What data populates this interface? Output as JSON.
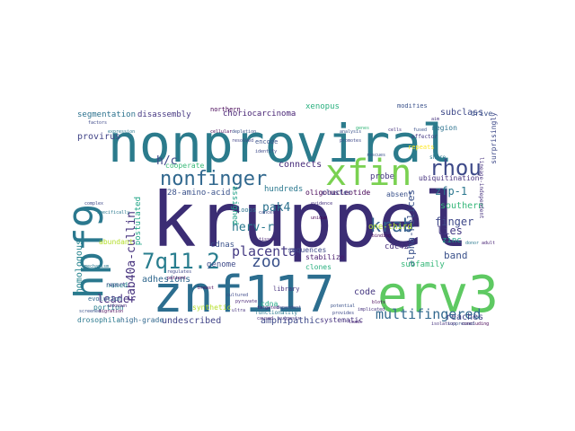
{
  "word_cloud": {
    "words": [
      {
        "text": "kruppel",
        "color": "#3b2d74"
      },
      {
        "text": "nonproviral",
        "color": "#2b7b8c"
      },
      {
        "text": "znf117",
        "color": "#2c6e8f"
      },
      {
        "text": "erv3",
        "color": "#5ec962"
      },
      {
        "text": "hpf9",
        "color": "#2a788e"
      },
      {
        "text": "xfin",
        "color": "#7ad151"
      },
      {
        "text": "rhou",
        "color": "#3e4a89"
      },
      {
        "text": "nonfinger",
        "color": "#31688e"
      },
      {
        "text": "krab",
        "color": "#34608d"
      },
      {
        "text": "7q11.2",
        "color": "#287d8e"
      },
      {
        "text": "zoo",
        "color": "#3b528b"
      },
      {
        "text": "placenta",
        "color": "#443a83"
      },
      {
        "text": "multifingered",
        "color": "#31688e"
      },
      {
        "text": "rab40a-cullin",
        "color": "#46327e"
      },
      {
        "text": "herv-r",
        "color": "#2a788e"
      },
      {
        "text": "pak4",
        "color": "#2c728e"
      },
      {
        "text": "h/c",
        "color": "#3e4989"
      },
      {
        "text": "zfp-1",
        "color": "#2a768e"
      },
      {
        "text": "finger",
        "color": "#3f4889"
      },
      {
        "text": "alpha-helices",
        "color": "#3b528b"
      },
      {
        "text": "leader",
        "color": "#46307e"
      },
      {
        "text": "homologous",
        "color": "#25848e"
      },
      {
        "text": "segmentation",
        "color": "#2c728e"
      },
      {
        "text": "disassembly",
        "color": "#453781"
      },
      {
        "text": "choriocarcinoma",
        "color": "#482475"
      },
      {
        "text": "subclass",
        "color": "#3e4989"
      },
      {
        "text": "provirus",
        "color": "#414487"
      },
      {
        "text": "connects",
        "color": "#472c7a"
      },
      {
        "text": "28-amino-acid",
        "color": "#3b528b"
      },
      {
        "text": "hundreds",
        "color": "#2a788e"
      },
      {
        "text": "cdnas",
        "color": "#3b528b"
      },
      {
        "text": "southern",
        "color": "#35b779"
      },
      {
        "text": "adhesions",
        "color": "#31688e"
      },
      {
        "text": "genome",
        "color": "#3e4a89"
      },
      {
        "text": "one-third",
        "color": "#b5de2b"
      },
      {
        "text": "cdc42",
        "color": "#472f7d"
      },
      {
        "text": "lies",
        "color": "#443983"
      },
      {
        "text": "band",
        "color": "#3b528b"
      },
      {
        "text": "code",
        "color": "#453781"
      },
      {
        "text": "undescribed",
        "color": "#414487"
      },
      {
        "text": "amphipathic",
        "color": "#3e4989"
      },
      {
        "text": "reaches",
        "color": "#414487"
      },
      {
        "text": "xenopus",
        "color": "#2ab07f"
      },
      {
        "text": "postulated",
        "color": "#20a486"
      },
      {
        "text": "assigned",
        "color": "#1fa187"
      },
      {
        "text": "named",
        "color": "#25848e"
      },
      {
        "text": "portion",
        "color": "#277f8e"
      },
      {
        "text": "zinc",
        "color": "#1fa187"
      },
      {
        "text": "subfamily",
        "color": "#35b779"
      },
      {
        "text": "high-grade",
        "color": "#31688e"
      },
      {
        "text": "drosophila",
        "color": "#2a788e"
      },
      {
        "text": "clones",
        "color": "#29af7f"
      },
      {
        "text": "stabilize",
        "color": "#481b6d"
      },
      {
        "text": "systematic",
        "color": "#46327e"
      },
      {
        "text": "cdna",
        "color": "#22a785"
      },
      {
        "text": "probe",
        "color": "#453781"
      },
      {
        "text": "absent",
        "color": "#3b528b"
      },
      {
        "text": "oligonucleotide",
        "color": "#440154"
      },
      {
        "text": "cluster",
        "color": "#3e4989"
      },
      {
        "text": "sequences",
        "color": "#3e4989"
      },
      {
        "text": "abundant",
        "color": "#b5de2b"
      },
      {
        "text": "cooperate",
        "color": "#38b977"
      },
      {
        "text": "ubiquitination",
        "color": "#46327e"
      },
      {
        "text": "region",
        "color": "#2c728e"
      },
      {
        "text": "drive",
        "color": "#3b528b"
      },
      {
        "text": "surprisingly",
        "color": "#3e4989"
      },
      {
        "text": "synthetic",
        "color": "#b5de2b"
      },
      {
        "text": "library",
        "color": "#46327e"
      },
      {
        "text": "evolution",
        "color": "#31688e"
      },
      {
        "text": "loops",
        "color": "#2c728e"
      },
      {
        "text": "northern",
        "color": "#440154"
      },
      {
        "text": "repeats",
        "color": "#fde725"
      },
      {
        "text": "modifies",
        "color": "#3b528b"
      },
      {
        "text": "effector",
        "color": "#443983"
      },
      {
        "text": "functionality",
        "color": "#2a788e"
      },
      {
        "text": "report",
        "color": "#3e4989"
      },
      {
        "text": "encode",
        "color": "#3b528b"
      },
      {
        "text": "lineage-independent",
        "color": "#46327e"
      },
      {
        "text": "share",
        "color": "#2a788e"
      },
      {
        "text": "specifically",
        "color": "#2a788e"
      },
      {
        "text": "identify",
        "color": "#3e4989"
      },
      {
        "text": "genes",
        "color": "#35b779"
      },
      {
        "text": "cells",
        "color": "#46327e"
      },
      {
        "text": "depletion",
        "color": "#3b528b"
      },
      {
        "text": "cellular",
        "color": "#440154"
      },
      {
        "text": "resolved",
        "color": "#414487"
      },
      {
        "text": "regulates",
        "color": "#3e4989"
      },
      {
        "text": "patient",
        "color": "#440154"
      },
      {
        "text": "tissues",
        "color": "#482475"
      },
      {
        "text": "cancer",
        "color": "#3e4989"
      },
      {
        "text": "targeted",
        "color": "#482475"
      },
      {
        "text": "dependent",
        "color": "#3e4989"
      },
      {
        "text": "suggests",
        "color": "#46327e"
      },
      {
        "text": "caused",
        "color": "#472c7a"
      },
      {
        "text": "potential",
        "color": "#3b528b"
      },
      {
        "text": "provides",
        "color": "#3e4989"
      },
      {
        "text": "blots",
        "color": "#440154"
      },
      {
        "text": "leads",
        "color": "#482475"
      },
      {
        "text": "implicated",
        "color": "#46327e"
      },
      {
        "text": "rescues",
        "color": "#3b528b"
      },
      {
        "text": "donor",
        "color": "#2a788e"
      },
      {
        "text": "adult",
        "color": "#482475"
      },
      {
        "text": "concluding",
        "color": "#440154"
      },
      {
        "text": "suppressed",
        "color": "#3b528b"
      },
      {
        "text": "isolation",
        "color": "#46327e"
      },
      {
        "text": "complex",
        "color": "#3e4989"
      },
      {
        "text": "mechanism",
        "color": "#2a788e"
      },
      {
        "text": "migration",
        "color": "#440154"
      },
      {
        "text": "unknown",
        "color": "#482475"
      },
      {
        "text": "expression",
        "color": "#2a788e"
      },
      {
        "text": "screened",
        "color": "#3b528b"
      },
      {
        "text": "breast",
        "color": "#440154"
      },
      {
        "text": "cultured",
        "color": "#3e4989"
      },
      {
        "text": "ultra",
        "color": "#46327e"
      },
      {
        "text": "pyruvate",
        "color": "#482475"
      },
      {
        "text": "factors",
        "color": "#3e4989"
      },
      {
        "text": "unique",
        "color": "#440154"
      },
      {
        "text": "analysis",
        "color": "#3b528b"
      },
      {
        "text": "promotes",
        "color": "#3e4989"
      },
      {
        "text": "evidence",
        "color": "#46327e"
      },
      {
        "text": "binding",
        "color": "#440154"
      },
      {
        "text": "fused",
        "color": "#3b528b"
      },
      {
        "text": "aim",
        "color": "#46327e"
      }
    ]
  }
}
